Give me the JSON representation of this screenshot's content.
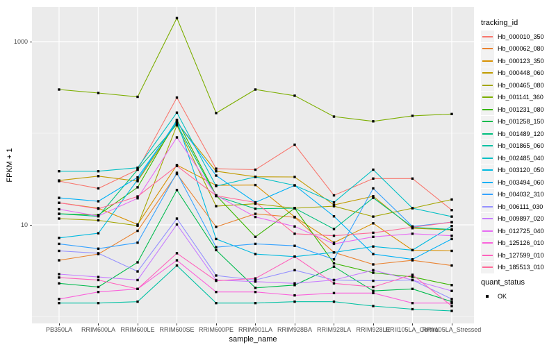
{
  "style": {
    "background": "#ffffff",
    "panel_background": "#ebebeb",
    "grid_color": "#ffffff",
    "point_color": "#000000",
    "axis_text_color": "#4d4d4d",
    "legend_key_background": "#f2f2f2"
  },
  "legend": {
    "tracking_title": "tracking_id",
    "quant_title": "quant_status",
    "quant_items": [
      {
        "label": "OK",
        "marker": "black-square-icon"
      }
    ]
  },
  "chart_data": {
    "type": "line",
    "title": "",
    "xlabel": "sample_name",
    "ylabel": "FPKM + 1",
    "y_scale": "log10",
    "ylim": [
      1,
      2200
    ],
    "grid": "on",
    "legend_position": "right",
    "marker": "black-square",
    "y_ticks": [
      {
        "label": "1000",
        "value": 1000
      },
      {
        "label": "10",
        "value": 10
      }
    ],
    "y_minor_gridlines": [
      100,
      1
    ],
    "categories": [
      "PB350LA",
      "RRIM600LA",
      "RRIM600LE",
      "RRIM600SE",
      "RRIM600PE",
      "RRIM901LA",
      "RRIM928BA",
      "RRIM928LA",
      "RRIM928LE",
      "RRII105LA_Control",
      "RRII105LA_Stressed"
    ],
    "series": [
      {
        "name": "Hb_000010_350",
        "color": "#F8766D",
        "values": [
          30,
          25,
          40,
          245,
          41,
          40,
          75,
          21,
          32,
          32,
          14.5
        ]
      },
      {
        "name": "Hb_000062_080",
        "color": "#EA8331",
        "values": [
          4.1,
          4.8,
          8.6,
          36,
          9.5,
          13.2,
          12.1,
          5.0,
          3.7,
          4.1,
          3.6
        ]
      },
      {
        "name": "Hb_000123_350",
        "color": "#D89000",
        "values": [
          17.4,
          15.2,
          10.1,
          45,
          27,
          27.2,
          12.2,
          6.4,
          10.4,
          5.3,
          5.2
        ]
      },
      {
        "name": "Hb_000448_060",
        "color": "#C09B00",
        "values": [
          30.5,
          34,
          30,
          131,
          38.5,
          33.5,
          33.3,
          16.5,
          20.5,
          9.2,
          8.8
        ]
      },
      {
        "name": "Hb_000465_080",
        "color": "#A3A500",
        "values": [
          11.7,
          11.2,
          9.8,
          122,
          16,
          17,
          15.2,
          16,
          12.3,
          15.2,
          18.9
        ]
      },
      {
        "name": "Hb_001141_360",
        "color": "#7CAE00",
        "values": [
          300,
          275,
          250,
          1810,
          166,
          300,
          257,
          152,
          135,
          155,
          162
        ]
      },
      {
        "name": "Hb_001231_080",
        "color": "#39B600",
        "values": [
          13.2,
          12.8,
          25.7,
          140,
          21,
          7.4,
          15.2,
          3.8,
          3.0,
          2.7,
          2.2
        ]
      },
      {
        "name": "Hb_001258_150",
        "color": "#00BB4E",
        "values": [
          2.3,
          2.1,
          3.9,
          24,
          5.3,
          2.05,
          2.2,
          3.5,
          1.9,
          2.0,
          1.45
        ]
      },
      {
        "name": "Hb_001489_120",
        "color": "#00BF7D",
        "values": [
          13.2,
          12.4,
          40,
          125,
          20.6,
          15,
          15.2,
          9.0,
          19.7,
          9.4,
          8.9
        ]
      },
      {
        "name": "Hb_001865_060",
        "color": "#00C1A3",
        "values": [
          1.4,
          1.4,
          1.45,
          3.6,
          1.4,
          1.4,
          1.45,
          1.45,
          1.3,
          1.2,
          1.15
        ]
      },
      {
        "name": "Hb_002485_040",
        "color": "#00BFC4",
        "values": [
          38.5,
          38.5,
          42,
          168,
          26.5,
          33.3,
          27,
          17.6,
          40,
          15.2,
          12.3
        ]
      },
      {
        "name": "Hb_003120_050",
        "color": "#00BAE0",
        "values": [
          7.2,
          8.1,
          31,
          138,
          7.0,
          4.8,
          4.5,
          5.0,
          5.8,
          5.3,
          9.7
        ]
      },
      {
        "name": "Hb_003494_060",
        "color": "#00B0F6",
        "values": [
          19.7,
          18.1,
          33,
          133,
          34.5,
          17.6,
          27,
          12.4,
          4.8,
          4.2,
          7.0
        ]
      },
      {
        "name": "Hb_004032_310",
        "color": "#35A2FF",
        "values": [
          6.2,
          5.5,
          6.4,
          37,
          5.7,
          6.2,
          5.9,
          4.2,
          25,
          9.6,
          10.7
        ]
      },
      {
        "name": "Hb_006111_030",
        "color": "#9590FF",
        "values": [
          5.2,
          4.9,
          3.1,
          11.7,
          2.8,
          2.5,
          3.2,
          2.5,
          2.45,
          2.5,
          1.55
        ]
      },
      {
        "name": "Hb_009897_020",
        "color": "#C77CFF",
        "values": [
          2.9,
          2.7,
          2.5,
          10.1,
          2.5,
          2.4,
          2.3,
          2.5,
          3.2,
          2.5,
          1.9
        ]
      },
      {
        "name": "Hb_012725_040",
        "color": "#E76BF3",
        "values": [
          14.8,
          12.5,
          19.5,
          90,
          21,
          12.2,
          9.6,
          6.2,
          7.4,
          8.0,
          7.6
        ]
      },
      {
        "name": "Hb_125126_010",
        "color": "#FA62DB",
        "values": [
          1.55,
          1.85,
          2.0,
          4.1,
          1.85,
          1.85,
          1.7,
          1.8,
          1.8,
          1.4,
          1.4
        ]
      },
      {
        "name": "Hb_127599_010",
        "color": "#FF62BC",
        "values": [
          2.66,
          2.5,
          2.0,
          4.9,
          2.45,
          2.6,
          4.5,
          2.3,
          2.1,
          2.85,
          1.3
        ]
      },
      {
        "name": "Hb_185513_010",
        "color": "#FF6A98",
        "values": [
          17.4,
          15.0,
          20.4,
          44,
          20.8,
          17.6,
          8.0,
          7.6,
          8.2,
          9.4,
          10.7
        ]
      }
    ]
  }
}
